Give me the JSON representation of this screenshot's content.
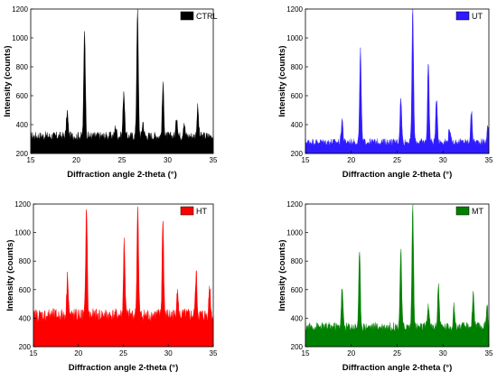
{
  "chart_data": [
    {
      "type": "area",
      "legend": "CTRL",
      "color": "#000000",
      "xlabel": "Diffraction angle 2-theta (°)",
      "ylabel": "Intensity (counts)",
      "xlim": [
        15,
        35
      ],
      "ylim": [
        200,
        1200
      ],
      "xticks": [
        15,
        20,
        25,
        30,
        35
      ],
      "yticks": [
        200,
        400,
        600,
        800,
        1000,
        1200
      ],
      "legend_position": "top-right",
      "baseline": 320,
      "noise": 40,
      "peaks": [
        {
          "x": 19.0,
          "y": 490
        },
        {
          "x": 20.9,
          "y": 1065
        },
        {
          "x": 24.3,
          "y": 390
        },
        {
          "x": 25.2,
          "y": 640
        },
        {
          "x": 26.7,
          "y": 1200
        },
        {
          "x": 27.3,
          "y": 420
        },
        {
          "x": 29.5,
          "y": 680
        },
        {
          "x": 31.0,
          "y": 460
        },
        {
          "x": 31.8,
          "y": 420
        },
        {
          "x": 33.3,
          "y": 520
        }
      ]
    },
    {
      "type": "area",
      "legend": "UT",
      "color": "#2f1bff",
      "xlabel": "Diffraction angle 2-theta (°)",
      "ylabel": "Intensity (counts)",
      "xlim": [
        15,
        35
      ],
      "ylim": [
        200,
        1200
      ],
      "xticks": [
        15,
        20,
        25,
        30,
        35
      ],
      "yticks": [
        200,
        400,
        600,
        800,
        1000,
        1200
      ],
      "legend_position": "top-right",
      "baseline": 280,
      "noise": 30,
      "peaks": [
        {
          "x": 19.0,
          "y": 440
        },
        {
          "x": 21.0,
          "y": 910
        },
        {
          "x": 25.4,
          "y": 590
        },
        {
          "x": 26.7,
          "y": 1200
        },
        {
          "x": 28.4,
          "y": 840
        },
        {
          "x": 29.3,
          "y": 590
        },
        {
          "x": 30.7,
          "y": 380
        },
        {
          "x": 33.1,
          "y": 490
        },
        {
          "x": 34.9,
          "y": 390
        }
      ]
    },
    {
      "type": "area",
      "legend": "HT",
      "color": "#ff0000",
      "xlabel": "Diffraction angle 2-theta (°)",
      "ylabel": "Intensity (counts)",
      "xlim": [
        15,
        35
      ],
      "ylim": [
        200,
        1200
      ],
      "xticks": [
        15,
        20,
        25,
        30,
        35
      ],
      "yticks": [
        200,
        400,
        600,
        800,
        1000,
        1200
      ],
      "legend_position": "top-right",
      "baseline": 420,
      "noise": 60,
      "peaks": [
        {
          "x": 18.8,
          "y": 720
        },
        {
          "x": 20.9,
          "y": 1200
        },
        {
          "x": 25.1,
          "y": 950
        },
        {
          "x": 26.6,
          "y": 1200
        },
        {
          "x": 29.4,
          "y": 1110
        },
        {
          "x": 31.0,
          "y": 600
        },
        {
          "x": 33.1,
          "y": 720
        },
        {
          "x": 34.6,
          "y": 630
        }
      ]
    },
    {
      "type": "area",
      "legend": "MT",
      "color": "#008000",
      "xlabel": "Diffraction angle 2-theta (°)",
      "ylabel": "Intensity (counts)",
      "xlim": [
        15,
        35
      ],
      "ylim": [
        200,
        1200
      ],
      "xticks": [
        15,
        20,
        25,
        30,
        35
      ],
      "yticks": [
        200,
        400,
        600,
        800,
        1000,
        1200
      ],
      "legend_position": "top-right",
      "baseline": 340,
      "noise": 40,
      "peaks": [
        {
          "x": 19.0,
          "y": 620
        },
        {
          "x": 20.9,
          "y": 860
        },
        {
          "x": 25.4,
          "y": 880
        },
        {
          "x": 26.7,
          "y": 1200
        },
        {
          "x": 28.4,
          "y": 500
        },
        {
          "x": 29.5,
          "y": 640
        },
        {
          "x": 31.2,
          "y": 480
        },
        {
          "x": 33.3,
          "y": 590
        },
        {
          "x": 34.8,
          "y": 500
        }
      ]
    }
  ]
}
